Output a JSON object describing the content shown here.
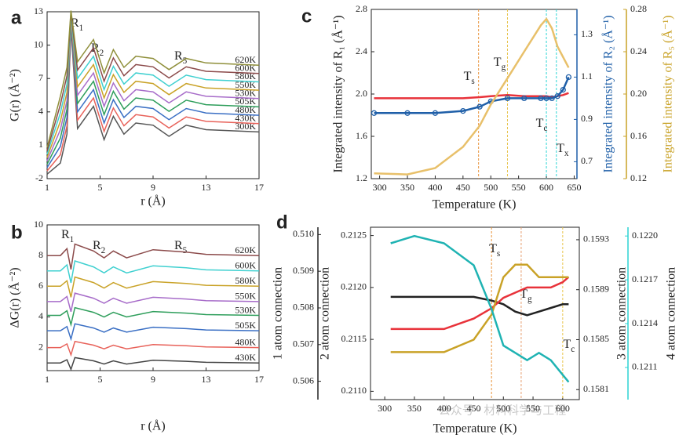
{
  "chart_data": [
    {
      "type": "line",
      "panel_label": "a",
      "xlabel": "r (Å)",
      "ylabel": "G(r) (Å⁻²)",
      "xlim": [
        1,
        17
      ],
      "xticks": [
        1,
        5,
        9,
        13,
        17
      ],
      "ylim": [
        -2,
        13
      ],
      "yticks": [
        -2,
        1,
        4,
        7,
        10,
        13
      ],
      "annotations": [
        "R1",
        "R2",
        "R5"
      ],
      "x": [
        1,
        2,
        2.5,
        2.8,
        3.3,
        4.5,
        5.3,
        6,
        6.8,
        7.7,
        9,
        10.2,
        11.5,
        13,
        17
      ],
      "series": [
        {
          "name": "300K",
          "color": "#555555",
          "values": [
            -1.6,
            -0.6,
            2,
            11.5,
            2.5,
            4.5,
            1.5,
            3.6,
            2,
            3,
            2.8,
            1.8,
            2.8,
            2.4,
            2.2
          ]
        },
        {
          "name": "430K",
          "color": "#e8625a",
          "values": [
            -1.3,
            0.15,
            2.75,
            11.7,
            3.25,
            5.25,
            2.25,
            4.35,
            2.75,
            3.75,
            3.55,
            2.55,
            3.55,
            3.15,
            2.95
          ]
        },
        {
          "name": "480K",
          "color": "#3a6fc4",
          "values": [
            -1.0,
            0.9,
            3.5,
            11.9,
            4.0,
            6.0,
            3.0,
            5.1,
            3.5,
            4.5,
            4.3,
            3.3,
            4.3,
            3.9,
            3.7
          ]
        },
        {
          "name": "505K",
          "color": "#2e9e5b",
          "values": [
            -0.7,
            1.65,
            4.25,
            12.1,
            4.75,
            6.75,
            3.75,
            5.85,
            4.25,
            5.25,
            5.05,
            4.05,
            5.05,
            4.65,
            4.45
          ]
        },
        {
          "name": "530K",
          "color": "#a76cc9",
          "values": [
            -0.4,
            2.4,
            5,
            12.3,
            5.5,
            7.5,
            4.5,
            6.6,
            5,
            6,
            5.8,
            4.8,
            5.8,
            5.4,
            5.2
          ]
        },
        {
          "name": "550K",
          "color": "#c9a227",
          "values": [
            -0.1,
            3.15,
            5.75,
            12.5,
            6.25,
            8.25,
            5.25,
            7.35,
            5.75,
            6.75,
            6.55,
            5.55,
            6.55,
            6.15,
            5.95
          ]
        },
        {
          "name": "580K",
          "color": "#3fd0d0",
          "values": [
            0.2,
            3.9,
            6.5,
            12.7,
            7,
            9,
            6,
            8.1,
            6.5,
            7.5,
            7.3,
            6.3,
            7.3,
            6.9,
            6.7
          ]
        },
        {
          "name": "600K",
          "color": "#8b4a4a",
          "values": [
            0.5,
            4.65,
            7.25,
            12.9,
            7.75,
            9.75,
            6.75,
            8.85,
            7.25,
            8.25,
            8.05,
            7.05,
            8.05,
            7.65,
            7.45
          ]
        },
        {
          "name": "620K",
          "color": "#8f8f3a",
          "values": [
            0.8,
            5.4,
            8,
            13.1,
            8.5,
            10.5,
            7.5,
            9.6,
            8,
            9,
            8.8,
            7.8,
            8.8,
            8.4,
            8.2
          ]
        }
      ]
    },
    {
      "type": "line",
      "panel_label": "b",
      "xlabel": "r (Å)",
      "ylabel": "ΔG(r) (Å⁻²)",
      "xlim": [
        1,
        17
      ],
      "xticks": [
        1,
        5,
        9,
        13,
        17
      ],
      "ylim": [
        0.5,
        10
      ],
      "yticks": [
        2,
        4,
        6,
        8,
        10
      ],
      "annotations": [
        "R1",
        "R2",
        "R5"
      ],
      "x": [
        1,
        2,
        2.5,
        2.8,
        3.1,
        4.5,
        5.3,
        6,
        7,
        9,
        11.5,
        13,
        17
      ],
      "series": [
        {
          "name": "430K",
          "color": "#444444",
          "values": [
            1,
            1,
            1.21,
            0.58,
            1.35,
            1.14,
            0.93,
            1.14,
            0.93,
            1.18,
            1.11,
            1.04,
            1
          ]
        },
        {
          "name": "480K",
          "color": "#e8625a",
          "values": [
            2,
            2,
            2.24,
            1.52,
            2.4,
            2.16,
            1.92,
            2.16,
            1.92,
            2.2,
            2.12,
            2.04,
            2
          ]
        },
        {
          "name": "505K",
          "color": "#3a6fc4",
          "values": [
            3.1,
            3.1,
            3.37,
            2.56,
            3.55,
            3.28,
            3.01,
            3.28,
            3.01,
            3.33,
            3.24,
            3.15,
            3.1
          ]
        },
        {
          "name": "530K",
          "color": "#2e9e5b",
          "values": [
            4.1,
            4.1,
            4.4,
            3.5,
            4.6,
            4.3,
            4,
            4.3,
            4,
            4.35,
            4.25,
            4.15,
            4.1
          ]
        },
        {
          "name": "550K",
          "color": "#a76cc9",
          "values": [
            5,
            5,
            5.33,
            4.34,
            5.55,
            5.22,
            4.89,
            5.22,
            4.89,
            5.28,
            5.17,
            5.06,
            5
          ]
        },
        {
          "name": "580K",
          "color": "#c9a227",
          "values": [
            6,
            6,
            6.36,
            5.28,
            6.6,
            6.24,
            5.88,
            6.24,
            5.88,
            6.3,
            6.18,
            6.06,
            6
          ]
        },
        {
          "name": "600K",
          "color": "#3fd0d0",
          "values": [
            7,
            7,
            7.39,
            6.22,
            7.65,
            7.26,
            6.87,
            7.26,
            6.87,
            7.33,
            7.2,
            7.07,
            7
          ]
        },
        {
          "name": "620K",
          "color": "#8b4a4a",
          "values": [
            8,
            8,
            8.45,
            7.1,
            8.75,
            8.3,
            7.85,
            8.3,
            7.85,
            8.38,
            8.23,
            8.08,
            8
          ]
        }
      ]
    },
    {
      "type": "line",
      "panel_label": "c",
      "xlabel": "Temperature (K)",
      "ylabel": "Integrated intensity of R₁ (Å⁻¹)",
      "y2label": "Integrated intensity of R₂ (Å⁻¹)",
      "y3label": "Integrated intensity of R₅ (Å⁻¹)",
      "xlim": [
        285,
        655
      ],
      "xticks": [
        300,
        350,
        400,
        450,
        500,
        550,
        600,
        650
      ],
      "ylim": [
        1.2,
        2.8
      ],
      "yticks": [
        1.2,
        1.6,
        {
          "value": 2,
          "label": "2.0"
        },
        2.4,
        2.8
      ],
      "y2lim": [
        0.62,
        1.42
      ],
      "y2ticks": [
        0.7,
        0.9,
        1.1,
        1.3
      ],
      "y3lim": [
        0.12,
        0.28
      ],
      "y3ticks": [
        0.12,
        0.16,
        {
          "value": 0.2,
          "label": "0.20"
        },
        0.24,
        0.28
      ],
      "markers": [
        {
          "label": "Ts",
          "value": 478,
          "color": "#e8923a"
        },
        {
          "label": "Tg",
          "value": 530,
          "color": "#e8c34a"
        },
        {
          "label": "Tc",
          "value": 600,
          "color": "#2dd4d4"
        },
        {
          "label": "Tx",
          "value": 618,
          "color": "#2dd4d4"
        }
      ],
      "x": [
        290,
        350,
        400,
        450,
        480,
        500,
        530,
        560,
        590,
        600,
        610,
        620,
        630,
        640
      ],
      "series": [
        {
          "color": "#e8323a",
          "values": [
            1.96,
            1.96,
            1.96,
            1.96,
            1.97,
            1.98,
            1.99,
            1.98,
            1.98,
            1.98,
            1.97,
            1.98,
            1.99,
            2.01
          ]
        },
        {
          "color": "#1f5fa8",
          "axis": "y2",
          "marker": "circle",
          "values": [
            0.93,
            0.93,
            0.93,
            0.94,
            0.96,
            0.985,
            1.0,
            1.0,
            1.0,
            1.0,
            1.0,
            1.01,
            1.04,
            1.1
          ]
        },
        {
          "color": "#e8c06a",
          "axis": "y3",
          "values": [
            0.125,
            0.124,
            0.13,
            0.15,
            0.17,
            0.19,
            0.215,
            0.24,
            0.265,
            0.271,
            0.262,
            0.245,
            0.235,
            0.225
          ]
        }
      ]
    },
    {
      "type": "line",
      "panel_label": "d",
      "xlabel": "Temperature (K)",
      "ylabel": "1 atom connection",
      "y2label": "2 atom connection",
      "y3label": "3 atom connection",
      "y4label": "4 atom connection",
      "xlim": [
        276,
        628
      ],
      "xticks": [
        300,
        350,
        400,
        450,
        500,
        550,
        600
      ],
      "ylim": [
        0.5055,
        0.5102
      ],
      "yticks": [
        0.506,
        0.507,
        0.508,
        0.509,
        {
          "value": 0.51,
          "label": "0.510"
        }
      ],
      "y2lim": [
        0.21092,
        0.21258
      ],
      "y2ticks": [
        {
          "value": 0.211,
          "label": "0.2110"
        },
        0.2115,
        {
          "value": 0.212,
          "label": "0.2120"
        },
        0.2125
      ],
      "y3lim": [
        0.15802,
        0.1594
      ],
      "y3ticks": [
        0.1581,
        0.1585,
        0.1589,
        0.1593
      ],
      "y4lim": [
        0.12088,
        0.12206
      ],
      "y4ticks": [
        0.1211,
        0.1214,
        0.1217,
        {
          "value": 0.122,
          "label": "0.1220"
        }
      ],
      "markers": [
        {
          "label": "Ts",
          "value": 480,
          "color": "#e8923a"
        },
        {
          "label": "Tg",
          "value": 530,
          "color": "#e8a070"
        },
        {
          "label": "Tc",
          "value": 600,
          "color": "#e8c34a"
        }
      ],
      "x": [
        310,
        350,
        400,
        450,
        480,
        500,
        520,
        540,
        560,
        580,
        600,
        610
      ],
      "series": [
        {
          "color": "#222222",
          "values": [
            0.5083,
            0.5083,
            0.5083,
            0.5083,
            0.5082,
            0.5081,
            0.5079,
            0.5078,
            0.5079,
            0.508,
            0.5081,
            0.5081
          ]
        },
        {
          "color": "#e8323a",
          "axis": "y2",
          "values": [
            0.2116,
            0.2116,
            0.2116,
            0.2117,
            0.2118,
            0.2119,
            0.21195,
            0.212,
            0.212,
            0.212,
            0.21205,
            0.2121
          ]
        },
        {
          "color": "#c9a227",
          "axis": "y3",
          "values": [
            0.1584,
            0.1584,
            0.1584,
            0.1585,
            0.1587,
            0.159,
            0.1591,
            0.1591,
            0.159,
            0.159,
            0.159,
            0.159
          ]
        },
        {
          "color": "#1fb3b3",
          "axis": "y4",
          "values": [
            0.12195,
            0.122,
            0.12195,
            0.1218,
            0.1215,
            0.12125,
            0.1212,
            0.12115,
            0.1212,
            0.12115,
            0.12105,
            0.121
          ]
        }
      ]
    }
  ],
  "watermark": "公众号 · 材料科学与工程"
}
